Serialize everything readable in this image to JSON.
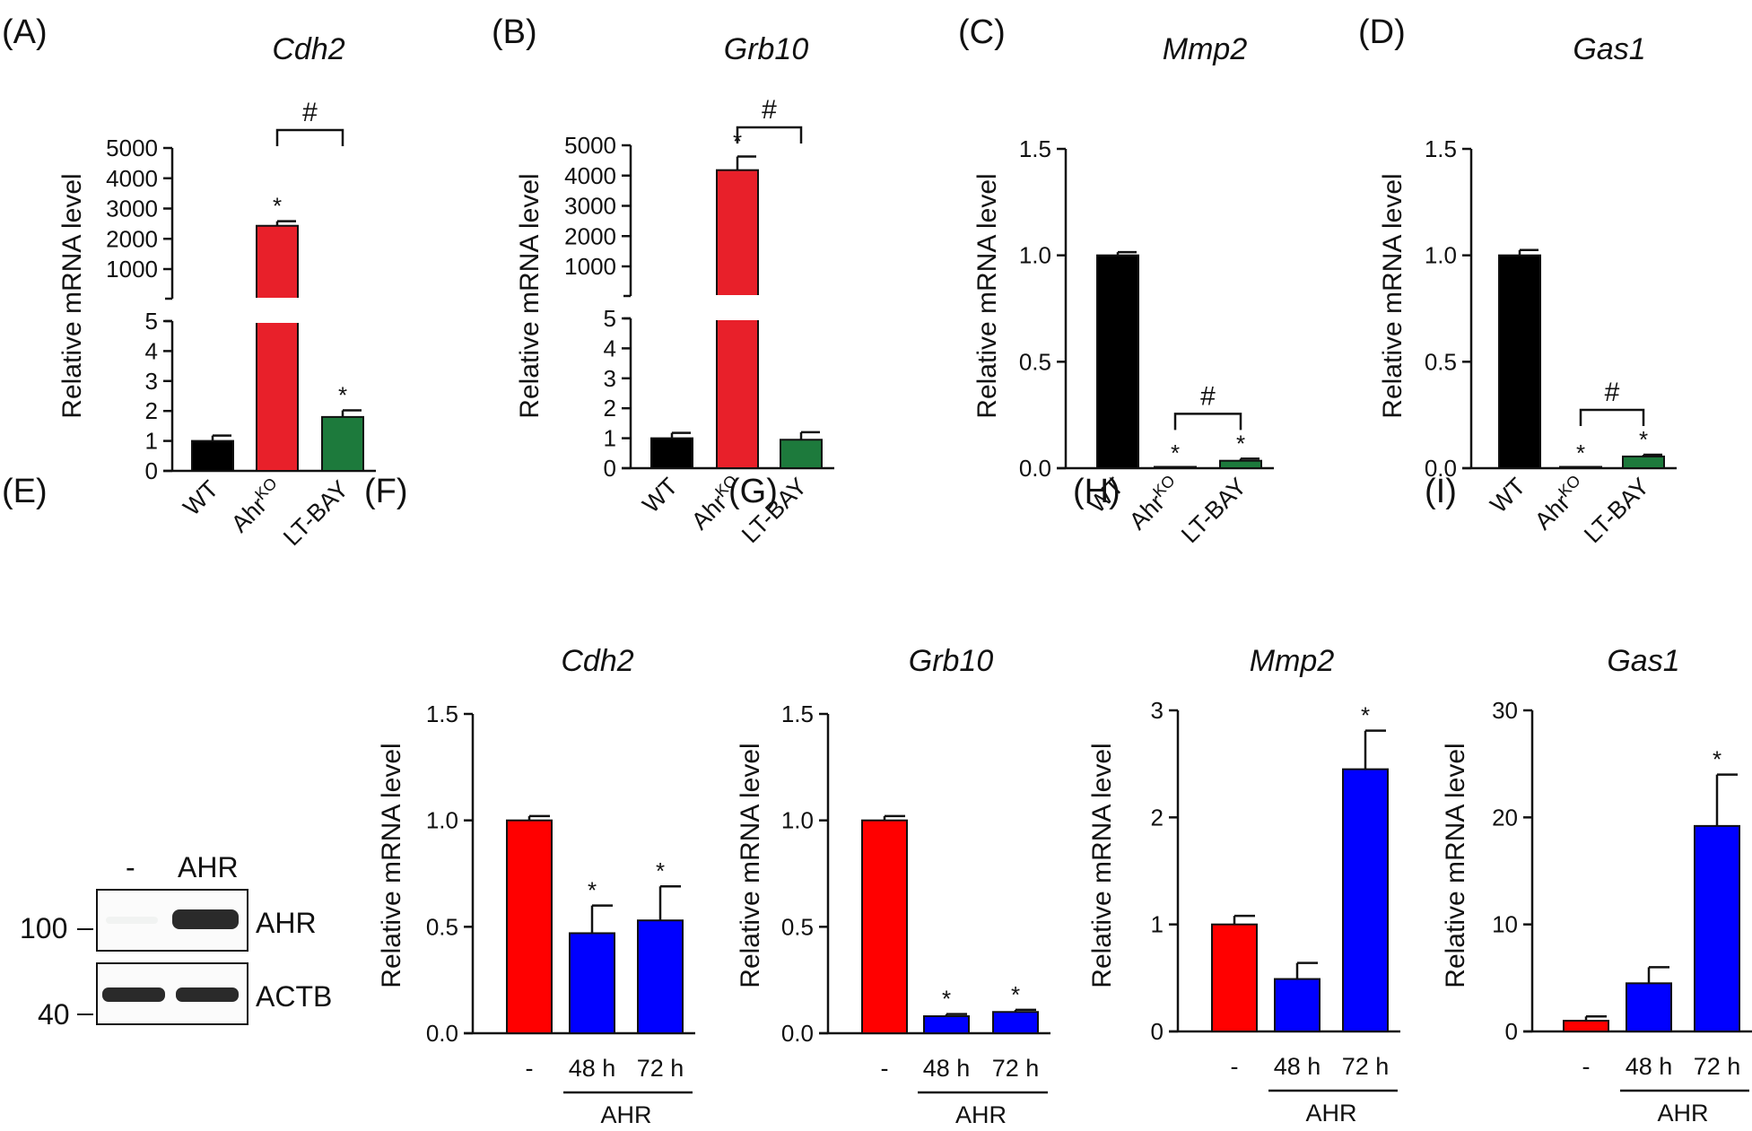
{
  "colors": {
    "wt": "#000000",
    "ko": "#e8202a",
    "bay": "#1d7a3c",
    "ctrl": "#ff0000",
    "ahr": "#0000ff"
  },
  "ylabel": "Relative mRNA level",
  "blot": {
    "label": "(E)",
    "lane_labels": [
      "-",
      "AHR"
    ],
    "band_labels": [
      "AHR",
      "ACTB"
    ],
    "markers": [
      "100",
      "40"
    ]
  },
  "chart_data": [
    {
      "label": "(A)",
      "title": "Cdh2",
      "type": "bar",
      "broken_axis": true,
      "categories": [
        "WT",
        "Ahr",
        "LT-BAY"
      ],
      "cat_sup": [
        "",
        "KO",
        ""
      ],
      "values": [
        1.0,
        2430,
        1.8
      ],
      "errors": [
        0.18,
        150,
        0.22
      ],
      "colors": [
        "wt",
        "ko",
        "bay"
      ],
      "lower_ticks": [
        "0",
        "1",
        "2",
        "3",
        "4",
        "5"
      ],
      "upper_ticks": [
        "1000",
        "2000",
        "3000",
        "4000",
        "5000"
      ],
      "stars": [
        "",
        "*",
        "*"
      ],
      "bracket": {
        "from": 1,
        "to": 2,
        "label": "#"
      }
    },
    {
      "label": "(B)",
      "title": "Grb10",
      "type": "bar",
      "broken_axis": true,
      "categories": [
        "WT",
        "Ahr",
        "LT-BAY"
      ],
      "cat_sup": [
        "",
        "KO",
        ""
      ],
      "values": [
        1.0,
        4180,
        0.95
      ],
      "errors": [
        0.18,
        450,
        0.25
      ],
      "colors": [
        "wt",
        "ko",
        "bay"
      ],
      "lower_ticks": [
        "0",
        "1",
        "2",
        "3",
        "4",
        "5"
      ],
      "upper_ticks": [
        "1000",
        "2000",
        "3000",
        "4000",
        "5000"
      ],
      "stars": [
        "",
        "*",
        ""
      ],
      "bracket": {
        "from": 1,
        "to": 2,
        "label": "#"
      }
    },
    {
      "label": "(C)",
      "title": "Mmp2",
      "type": "bar",
      "categories": [
        "WT",
        "Ahr",
        "LT-BAY"
      ],
      "cat_sup": [
        "",
        "KO",
        ""
      ],
      "values": [
        1.0,
        0.0,
        0.035
      ],
      "errors": [
        0.015,
        0,
        0.01
      ],
      "colors": [
        "wt",
        "ko",
        "bay"
      ],
      "ylim": [
        0,
        1.5
      ],
      "ticks": [
        "0.0",
        "0.5",
        "1.0",
        "1.5"
      ],
      "stars": [
        "",
        "*",
        "*"
      ],
      "bracket": {
        "from": 1,
        "to": 2,
        "label": "#"
      }
    },
    {
      "label": "(D)",
      "title": "Gas1",
      "type": "bar",
      "categories": [
        "WT",
        "Ahr",
        "LT-BAY"
      ],
      "cat_sup": [
        "",
        "KO",
        ""
      ],
      "values": [
        1.0,
        0.0,
        0.055
      ],
      "errors": [
        0.025,
        0,
        0.008
      ],
      "colors": [
        "wt",
        "ko",
        "bay"
      ],
      "ylim": [
        0,
        1.5
      ],
      "ticks": [
        "0.0",
        "0.5",
        "1.0",
        "1.5"
      ],
      "stars": [
        "",
        "*",
        "*"
      ],
      "bracket": {
        "from": 1,
        "to": 2,
        "label": "#"
      }
    },
    {
      "label": "(F)",
      "title": "Cdh2",
      "type": "bar",
      "categories": [
        "-",
        "48 h",
        "72 h"
      ],
      "group_label": "AHR",
      "values": [
        1.0,
        0.47,
        0.53
      ],
      "errors": [
        0.02,
        0.13,
        0.16
      ],
      "colors": [
        "ctrl",
        "ahr",
        "ahr"
      ],
      "ylim": [
        0,
        1.5
      ],
      "ticks": [
        "0.0",
        "0.5",
        "1.0",
        "1.5"
      ],
      "stars": [
        "",
        "*",
        "*"
      ]
    },
    {
      "label": "(G)",
      "title": "Grb10",
      "type": "bar",
      "categories": [
        "-",
        "48 h",
        "72 h"
      ],
      "group_label": "AHR",
      "values": [
        1.0,
        0.08,
        0.1
      ],
      "errors": [
        0.02,
        0.01,
        0.01
      ],
      "colors": [
        "ctrl",
        "ahr",
        "ahr"
      ],
      "ylim": [
        0,
        1.5
      ],
      "ticks": [
        "0.0",
        "0.5",
        "1.0",
        "1.5"
      ],
      "stars": [
        "",
        "*",
        "*"
      ]
    },
    {
      "label": "(H)",
      "title": "Mmp2",
      "type": "bar",
      "categories": [
        "-",
        "48 h",
        "72 h"
      ],
      "group_label": "AHR",
      "values": [
        1.0,
        0.49,
        2.45
      ],
      "errors": [
        0.08,
        0.15,
        0.36
      ],
      "colors": [
        "ctrl",
        "ahr",
        "ahr"
      ],
      "ylim": [
        0,
        3
      ],
      "ticks": [
        "0",
        "1",
        "2",
        "3"
      ],
      "stars": [
        "",
        "",
        "*"
      ]
    },
    {
      "label": "(I)",
      "title": "Gas1",
      "type": "bar",
      "categories": [
        "-",
        "48 h",
        "72 h"
      ],
      "group_label": "AHR",
      "values": [
        1.0,
        4.5,
        19.2
      ],
      "errors": [
        0.4,
        1.5,
        4.8
      ],
      "colors": [
        "ctrl",
        "ahr",
        "ahr"
      ],
      "ylim": [
        0,
        30
      ],
      "ticks": [
        "0",
        "10",
        "20",
        "30"
      ],
      "stars": [
        "",
        "",
        "*"
      ]
    }
  ]
}
